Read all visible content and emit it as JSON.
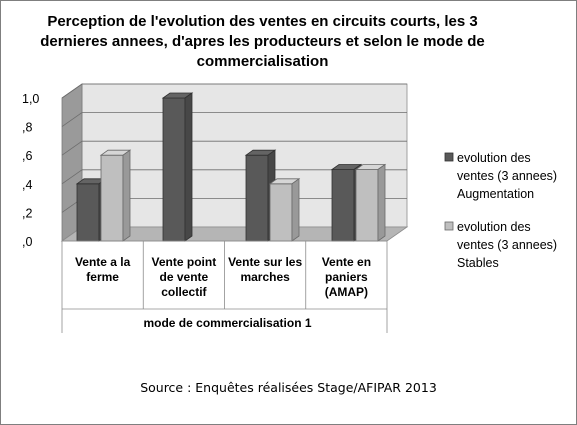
{
  "chart_data": {
    "type": "bar",
    "title": "Perception de l'evolution des ventes en circuits courts, les 3 dernieres annees, d'apres les producteurs et selon le mode de commercialisation",
    "categories": [
      [
        "Vente a la",
        "ferme"
      ],
      [
        "Vente point",
        "de vente",
        "collectif"
      ],
      [
        "Vente sur les",
        "marches"
      ],
      [
        "Vente en",
        "paniers",
        "(AMAP)"
      ]
    ],
    "series": [
      {
        "name": [
          "evolution des",
          "ventes (3 annees)",
          "Augmentation"
        ],
        "values": [
          0.4,
          1.0,
          0.6,
          0.5
        ],
        "color": "#595959"
      },
      {
        "name": [
          "evolution des",
          "ventes (3 annees)",
          "Stables"
        ],
        "values": [
          0.6,
          0.0,
          0.4,
          0.5
        ],
        "color": "#bfbfbf"
      }
    ],
    "ylim": [
      0,
      1.0
    ],
    "yticks": [
      ",0",
      ",2",
      ",4",
      ",6",
      ",8",
      "1,0"
    ],
    "xlabel": "mode de commercialisation 1",
    "legend_position": "right",
    "grid": true
  },
  "source": "Source : Enquêtes réalisées Stage/AFIPAR 2013"
}
